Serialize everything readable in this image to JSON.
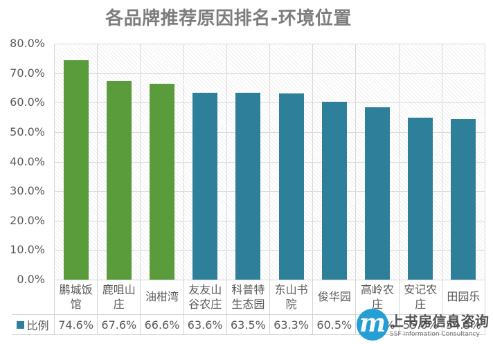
{
  "title": "各品牌推荐原因排名-环境位置",
  "legend": {
    "label": "比例"
  },
  "watermark": {
    "logo_letter": "m",
    "name": "上书房信息咨询",
    "subtitle": "SSF Information Consultancy",
    "logo_color": "#1b9ad5"
  },
  "chart_data": {
    "type": "bar",
    "title": "各品牌推荐原因排名-环境位置",
    "categories": [
      "鹏城饭馆",
      "鹿咀山庄",
      "油柑湾",
      "友友山谷农庄",
      "科普特生态园",
      "东山书院",
      "俊华园",
      "高岭农庄",
      "安记农庄",
      "田园乐"
    ],
    "series": [
      {
        "name": "比例",
        "values": [
          74.6,
          67.6,
          66.6,
          63.6,
          63.5,
          63.3,
          60.5,
          58.7,
          55.0,
          54.5
        ]
      }
    ],
    "value_labels": [
      "74.6%",
      "67.6%",
      "66.6%",
      "63.6%",
      "63.5%",
      "63.3%",
      "60.5%",
      "58.7%",
      "55.0%",
      "54.5%"
    ],
    "bar_colors": [
      "#5a9b3c",
      "#5a9b3c",
      "#5a9b3c",
      "#2e7f99",
      "#2e7f99",
      "#2e7f99",
      "#2e7f99",
      "#2e7f99",
      "#2e7f99",
      "#2e7f99"
    ],
    "ylim": [
      0,
      80
    ],
    "ytick_values": [
      80,
      70,
      60,
      50,
      40,
      30,
      20,
      10,
      0
    ],
    "ytick_labels": [
      "80.0%",
      "70.0%",
      "60.0%",
      "50.0%",
      "40.0%",
      "30.0%",
      "20.0%",
      "10.0%",
      "0.0%"
    ],
    "xlabel": "",
    "ylabel": "",
    "grid": true,
    "legend_position": "bottom-table"
  },
  "colors": {
    "green_bar": "#5a9b3c",
    "teal_bar": "#2e7f99",
    "gridline": "#d9d9d9",
    "text": "#595959",
    "title_text": "#7d7d7d"
  }
}
